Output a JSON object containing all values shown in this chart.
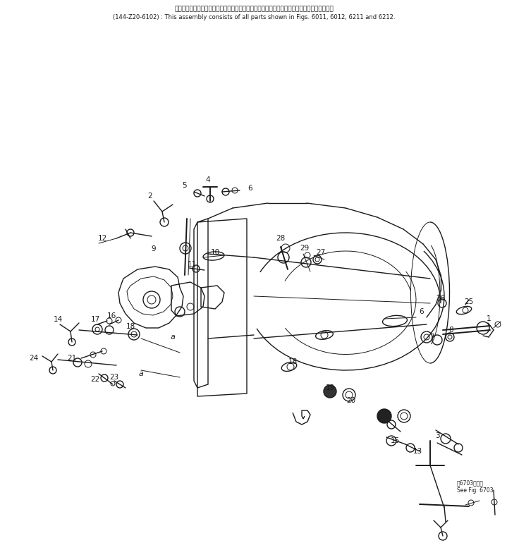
{
  "title_jp": "このアセンブリの構成部品は第６０１１、６０１２、６２１１および第６２１２図を含みます",
  "title_en": "(144-Z20-6102) : This assembly consists of all parts shown in Figs. 6011, 6012, 6211 and 6212.",
  "see_fig_jp": "第6703図参照",
  "see_fig_en": "See Fig. 6703",
  "bg_color": "#ffffff",
  "line_color": "#1a1a1a",
  "fig_width": 7.19,
  "fig_height": 7.87,
  "dpi": 100
}
